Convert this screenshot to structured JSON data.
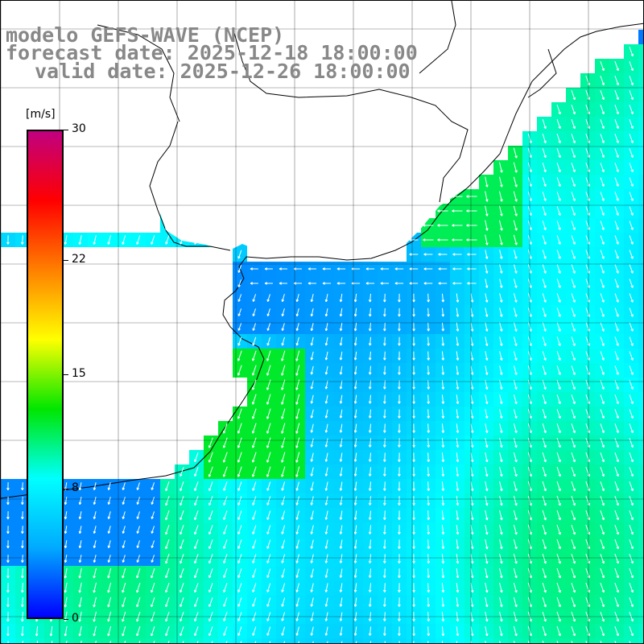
{
  "title": {
    "model": "modelo GEFS-WAVE (NCEP)",
    "forecast": "forecast date: 2025-12-18 18:00:00",
    "valid": "valid date: 2025-12-26 18:00:00"
  },
  "legend": {
    "unit": "[m/s]",
    "ticks": [
      "30",
      "22",
      "15",
      "8",
      "0"
    ],
    "tick_values": [
      30,
      22,
      15,
      8,
      0
    ],
    "min": 0,
    "max": 30,
    "colors": [
      "#0000ff",
      "#00aaff",
      "#00ffff",
      "#00e600",
      "#ffff00",
      "#ff8000",
      "#ff0000",
      "#c00080"
    ]
  },
  "colors": {
    "land": "#ffffff",
    "grid": "#000000",
    "arrow": "#ffffff",
    "coast": "#000000",
    "header_text": "#888888"
  }
}
